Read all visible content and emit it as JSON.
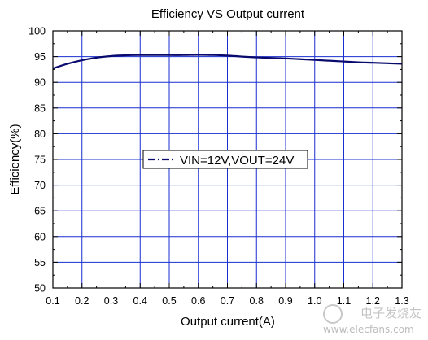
{
  "chart_data": {
    "type": "line",
    "title": "Efficiency VS Output current",
    "xlabel": "Output current(A)",
    "ylabel": "Efficiency(%)",
    "xlim": [
      0.1,
      1.3
    ],
    "ylim": [
      50,
      100
    ],
    "x_ticks": [
      "0.1",
      "0.2",
      "0.3",
      "0.4",
      "0.5",
      "0.6",
      "0.7",
      "0.8",
      "0.9",
      "1.0",
      "1.1",
      "1.2",
      "1.3"
    ],
    "y_ticks": [
      "50",
      "55",
      "60",
      "65",
      "70",
      "75",
      "80",
      "85",
      "90",
      "95",
      "100"
    ],
    "grid": true,
    "legend_position": "center",
    "series": [
      {
        "name": "VIN=12V,VOUT=24V",
        "color": "#0a0a6e",
        "line_style": "dash-dot",
        "x": [
          0.1,
          0.15,
          0.2,
          0.25,
          0.3,
          0.35,
          0.4,
          0.45,
          0.5,
          0.55,
          0.6,
          0.65,
          0.7,
          0.75,
          0.8,
          0.85,
          0.9,
          0.95,
          1.0,
          1.05,
          1.1,
          1.15,
          1.2,
          1.25,
          1.3
        ],
        "y": [
          92.7,
          93.6,
          94.3,
          94.8,
          95.1,
          95.25,
          95.3,
          95.3,
          95.3,
          95.3,
          95.35,
          95.3,
          95.2,
          95.0,
          94.85,
          94.75,
          94.65,
          94.5,
          94.35,
          94.2,
          94.05,
          93.9,
          93.8,
          93.7,
          93.6
        ]
      }
    ]
  },
  "watermark": {
    "text_top": "电子发烧友",
    "text_bottom": "www.elecfans.com"
  }
}
